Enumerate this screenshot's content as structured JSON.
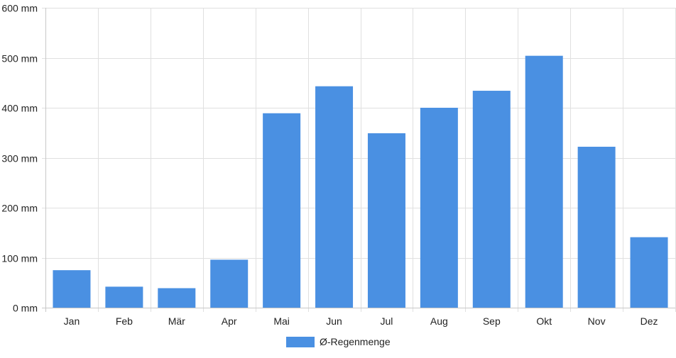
{
  "chart_data": {
    "type": "bar",
    "categories": [
      "Jan",
      "Feb",
      "Mär",
      "Apr",
      "Mai",
      "Jun",
      "Jul",
      "Aug",
      "Sep",
      "Okt",
      "Nov",
      "Dez"
    ],
    "series": [
      {
        "name": "Ø-Regenmenge",
        "values": [
          75,
          42,
          39,
          96,
          389,
          443,
          349,
          400,
          434,
          504,
          322,
          141
        ]
      }
    ],
    "ylim": [
      0,
      600
    ],
    "yticks": [
      0,
      100,
      200,
      300,
      400,
      500,
      600
    ],
    "ytick_labels": [
      "0 mm",
      "100 mm",
      "200 mm",
      "300 mm",
      "400 mm",
      "500 mm",
      "600 mm"
    ],
    "unit": "mm",
    "grid": true,
    "legend_position": "bottom-center",
    "colors": {
      "bar": "#4a90e2",
      "grid": "#e0e0e0",
      "axis": "#c8c8c8",
      "text": "#222222"
    }
  }
}
